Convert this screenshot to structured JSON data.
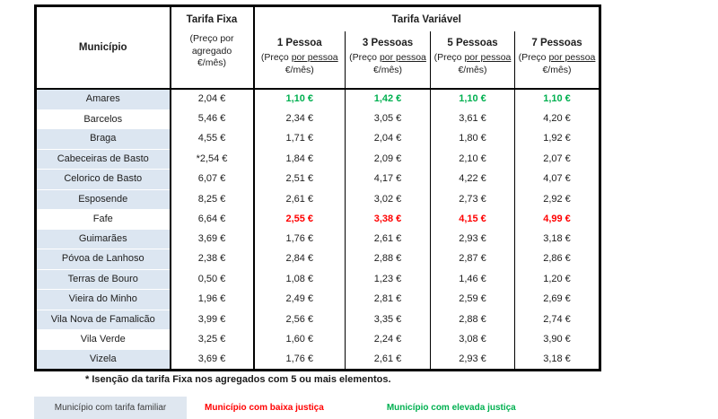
{
  "table": {
    "header": {
      "municipality": "Município",
      "fixed": {
        "title": "Tarifa Fixa",
        "sub": "(Preço por agregado €/mês)"
      },
      "variable_title": "Tarifa Variável",
      "persons": [
        {
          "label": "1 Pessoa"
        },
        {
          "label": "3 Pessoas"
        },
        {
          "label": "5 Pessoas"
        },
        {
          "label": "7 Pessoas"
        }
      ],
      "person_sub": {
        "prefix": "(Preço ",
        "underline": "por pessoa",
        "suffix": " €/mês)"
      }
    },
    "rows": [
      {
        "name": "Amares",
        "family_tariff": true,
        "fixed": "2,04 €",
        "variable": [
          "1,10 €",
          "1,42 €",
          "1,10 €",
          "1,10 €"
        ],
        "variant": "green"
      },
      {
        "name": "Barcelos",
        "family_tariff": false,
        "fixed": "5,46 €",
        "variable": [
          "2,34 €",
          "3,05 €",
          "3,61 €",
          "4,20 €"
        ],
        "variant": ""
      },
      {
        "name": "Braga",
        "family_tariff": true,
        "fixed": "4,55 €",
        "variable": [
          "1,71 €",
          "2,04 €",
          "1,80 €",
          "1,92 €"
        ],
        "variant": ""
      },
      {
        "name": "Cabeceiras de Basto",
        "family_tariff": true,
        "fixed": "*2,54 €",
        "variable": [
          "1,84 €",
          "2,09 €",
          "2,10 €",
          "2,07 €"
        ],
        "variant": ""
      },
      {
        "name": "Celorico de Basto",
        "family_tariff": true,
        "fixed": "6,07 €",
        "variable": [
          "2,51 €",
          "4,17 €",
          "4,22 €",
          "4,07 €"
        ],
        "variant": ""
      },
      {
        "name": "Esposende",
        "family_tariff": true,
        "fixed": "8,25 €",
        "variable": [
          "2,61 €",
          "3,02 €",
          "2,73 €",
          "2,92 €"
        ],
        "variant": ""
      },
      {
        "name": "Fafe",
        "family_tariff": false,
        "fixed": "6,64 €",
        "variable": [
          "2,55 €",
          "3,38 €",
          "4,15 €",
          "4,99 €"
        ],
        "variant": "red"
      },
      {
        "name": "Guimarães",
        "family_tariff": true,
        "fixed": "3,69 €",
        "variable": [
          "1,76 €",
          "2,61 €",
          "2,93 €",
          "3,18 €"
        ],
        "variant": ""
      },
      {
        "name": "Póvoa de Lanhoso",
        "family_tariff": true,
        "fixed": "2,38 €",
        "variable": [
          "2,84 €",
          "2,88 €",
          "2,87 €",
          "2,86 €"
        ],
        "variant": ""
      },
      {
        "name": "Terras de Bouro",
        "family_tariff": true,
        "fixed": "0,50 €",
        "variable": [
          "1,08 €",
          "1,23 €",
          "1,46 €",
          "1,20 €"
        ],
        "variant": ""
      },
      {
        "name": "Vieira do Minho",
        "family_tariff": true,
        "fixed": "1,96 €",
        "variable": [
          "2,49 €",
          "2,81 €",
          "2,59 €",
          "2,69 €"
        ],
        "variant": ""
      },
      {
        "name": "Vila Nova de Famalicão",
        "family_tariff": true,
        "fixed": "3,99 €",
        "variable": [
          "2,56 €",
          "3,35 €",
          "2,88 €",
          "2,74 €"
        ],
        "variant": ""
      },
      {
        "name": "Vila Verde",
        "family_tariff": false,
        "fixed": "3,25 €",
        "variable": [
          "1,60 €",
          "2,24 €",
          "3,08 €",
          "3,90 €"
        ],
        "variant": ""
      },
      {
        "name": "Vizela",
        "family_tariff": true,
        "fixed": "3,69 €",
        "variable": [
          "1,76 €",
          "2,61 €",
          "2,93 €",
          "3,18 €"
        ],
        "variant": ""
      }
    ]
  },
  "footnote": "* Isenção da tarifa Fixa nos agregados com 5 ou mais elementos.",
  "legend": {
    "familiar": "Município com tarifa familiar",
    "low_justice": "Município com baixa justiça",
    "high_justice": "Município com elevada justiça"
  },
  "colors": {
    "family_shade": "#dce6f1",
    "low_justice_red": "#ff0000",
    "high_justice_green": "#00b050"
  }
}
